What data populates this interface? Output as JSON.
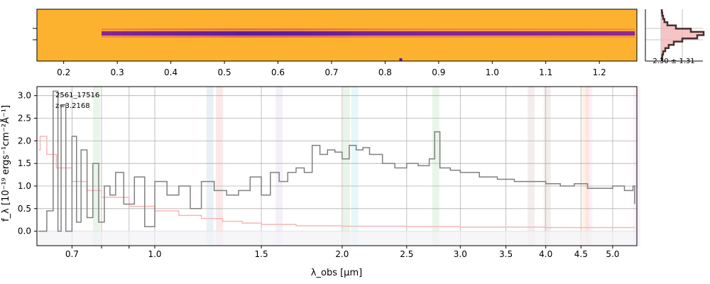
{
  "chart_data": [
    {
      "type": "heatmap",
      "panel": "2d-spectrum",
      "colormap": "plasma",
      "colors": {
        "background": "#fdb22f",
        "trace_core": "#5a1aa0",
        "trace_mid": "#b83289",
        "trace_weak": "#e06a5c",
        "noise_yellow": "#f0f921",
        "noise_purple": "#6a00a8"
      },
      "top_axis_ticks": [
        "0.2",
        "0.3",
        "0.4",
        "0.5",
        "0.6",
        "0.7",
        "0.8",
        "0.9",
        "1.0",
        "1.1",
        "1.2"
      ],
      "top_axis_tick_wavelengths_um": [
        0.2,
        0.3,
        0.4,
        0.5,
        0.6,
        0.7,
        0.8,
        0.9,
        1.0,
        1.1,
        1.2
      ],
      "trace_profile": [
        [
          0.62,
          0.2
        ],
        [
          0.9,
          0.6
        ],
        [
          1.4,
          0.95
        ],
        [
          1.75,
          0.9
        ],
        [
          2.2,
          0.65
        ],
        [
          2.9,
          0.55
        ],
        [
          3.6,
          0.5
        ],
        [
          4.4,
          0.45
        ],
        [
          5.0,
          0.42
        ],
        [
          5.38,
          0.4
        ]
      ],
      "bright_pixel_um": 2.45
    },
    {
      "type": "line",
      "panel": "profile",
      "label": "2.30 ± 1.31",
      "profile": [
        0.02,
        0.03,
        0.05,
        0.08,
        0.15,
        0.35,
        0.7,
        1.0,
        0.85,
        0.5,
        0.3,
        0.18,
        0.1,
        0.05,
        0.03,
        0.02
      ],
      "colors": {
        "line": "#4a2f2f",
        "fill": "#f3b6b6"
      }
    },
    {
      "type": "line",
      "panel": "1d-spectrum",
      "object_id": "2561_17516",
      "redshift_label": "z=3.2168",
      "xlabel": "λ_obs [μm]",
      "ylabel": "f_λ [10⁻¹⁹ ergs⁻¹cm⁻²Å⁻¹]",
      "xlim": [
        0.59,
        5.42
      ],
      "ylim": [
        -0.32,
        3.2
      ],
      "x_scale": "arcsinh",
      "grid": true,
      "xticks": [
        0.7,
        0.8,
        0.9,
        1.0,
        1.5,
        2.0,
        2.5,
        3.0,
        3.5,
        4.0,
        4.5,
        5.0
      ],
      "xtick_labels": [
        "0.7",
        "",
        "",
        "1.0",
        "1.5",
        "2.0",
        "2.5",
        "3.0",
        "3.5",
        "4.0",
        "4.5",
        "5.0"
      ],
      "yticks": [
        0.0,
        0.5,
        1.0,
        1.5,
        2.0,
        2.5,
        3.0
      ],
      "ytick_labels": [
        "0.0",
        "0.5",
        "1.0",
        "1.5",
        "2.0",
        "2.5",
        "3.0"
      ],
      "colors": {
        "spectrum": "#808080",
        "error": "#f4b8b8",
        "axis": "#000000",
        "grid": "#b0b0b0"
      },
      "emission_lines_um": [
        {
          "x": 0.783,
          "color": "#2ca02c"
        },
        {
          "x": 1.24,
          "color": "#1f77b4"
        },
        {
          "x": 1.285,
          "color": "#d62728"
        },
        {
          "x": 1.6,
          "color": "#9467bd"
        },
        {
          "x": 2.03,
          "color": "#2ca02c"
        },
        {
          "x": 2.09,
          "color": "#17becf"
        },
        {
          "x": 2.76,
          "color": "#2ca02c"
        },
        {
          "x": 3.81,
          "color": "#8c564b"
        },
        {
          "x": 4.02,
          "color": "#8c564b"
        },
        {
          "x": 4.57,
          "color": "#ff7f0e"
        },
        {
          "x": 4.62,
          "color": "#e377c2"
        },
        {
          "x": 5.42,
          "color": "#e377c2"
        }
      ],
      "series": [
        {
          "role": "flux",
          "x": [
            0.595,
            0.62,
            0.64,
            0.655,
            0.665,
            0.68,
            0.7,
            0.715,
            0.73,
            0.75,
            0.77,
            0.79,
            0.81,
            0.83,
            0.85,
            0.88,
            0.92,
            0.96,
            1.0,
            1.05,
            1.1,
            1.15,
            1.2,
            1.26,
            1.32,
            1.38,
            1.44,
            1.5,
            1.55,
            1.6,
            1.65,
            1.7,
            1.75,
            1.8,
            1.85,
            1.9,
            1.95,
            2.0,
            2.05,
            2.1,
            2.15,
            2.2,
            2.3,
            2.4,
            2.5,
            2.6,
            2.7,
            2.75,
            2.8,
            2.9,
            3.0,
            3.2,
            3.4,
            3.6,
            3.8,
            4.0,
            4.2,
            4.4,
            4.6,
            4.8,
            5.0,
            5.2,
            5.3,
            5.35,
            5.38
          ],
          "y": [
            0.0,
            0.45,
            3.1,
            0.0,
            2.8,
            0.0,
            2.1,
            0.2,
            1.8,
            0.3,
            1.5,
            0.2,
            1.0,
            0.8,
            1.3,
            0.6,
            1.2,
            0.1,
            1.1,
            0.8,
            1.0,
            0.5,
            1.1,
            0.9,
            0.8,
            0.9,
            1.2,
            0.8,
            1.3,
            1.1,
            1.3,
            1.4,
            1.3,
            1.9,
            1.7,
            1.8,
            1.75,
            1.6,
            1.9,
            1.8,
            1.85,
            1.7,
            1.5,
            1.4,
            1.5,
            1.45,
            1.6,
            2.2,
            1.4,
            1.35,
            1.3,
            1.2,
            1.15,
            1.1,
            1.1,
            1.05,
            1.0,
            1.05,
            0.95,
            0.95,
            1.0,
            0.9,
            0.9,
            1.0,
            0.6
          ]
        },
        {
          "role": "error",
          "x": [
            0.595,
            0.6,
            0.62,
            0.65,
            0.7,
            0.75,
            0.8,
            0.9,
            1.0,
            1.1,
            1.2,
            1.3,
            1.4,
            1.5,
            1.7,
            2.0,
            2.5,
            3.0,
            4.0,
            5.0,
            5.38
          ],
          "y": [
            1.8,
            2.1,
            1.7,
            1.4,
            1.1,
            0.9,
            0.75,
            0.55,
            0.45,
            0.35,
            0.28,
            0.22,
            0.18,
            0.15,
            0.12,
            0.11,
            0.1,
            0.09,
            0.08,
            0.08,
            0.07
          ]
        }
      ]
    }
  ]
}
